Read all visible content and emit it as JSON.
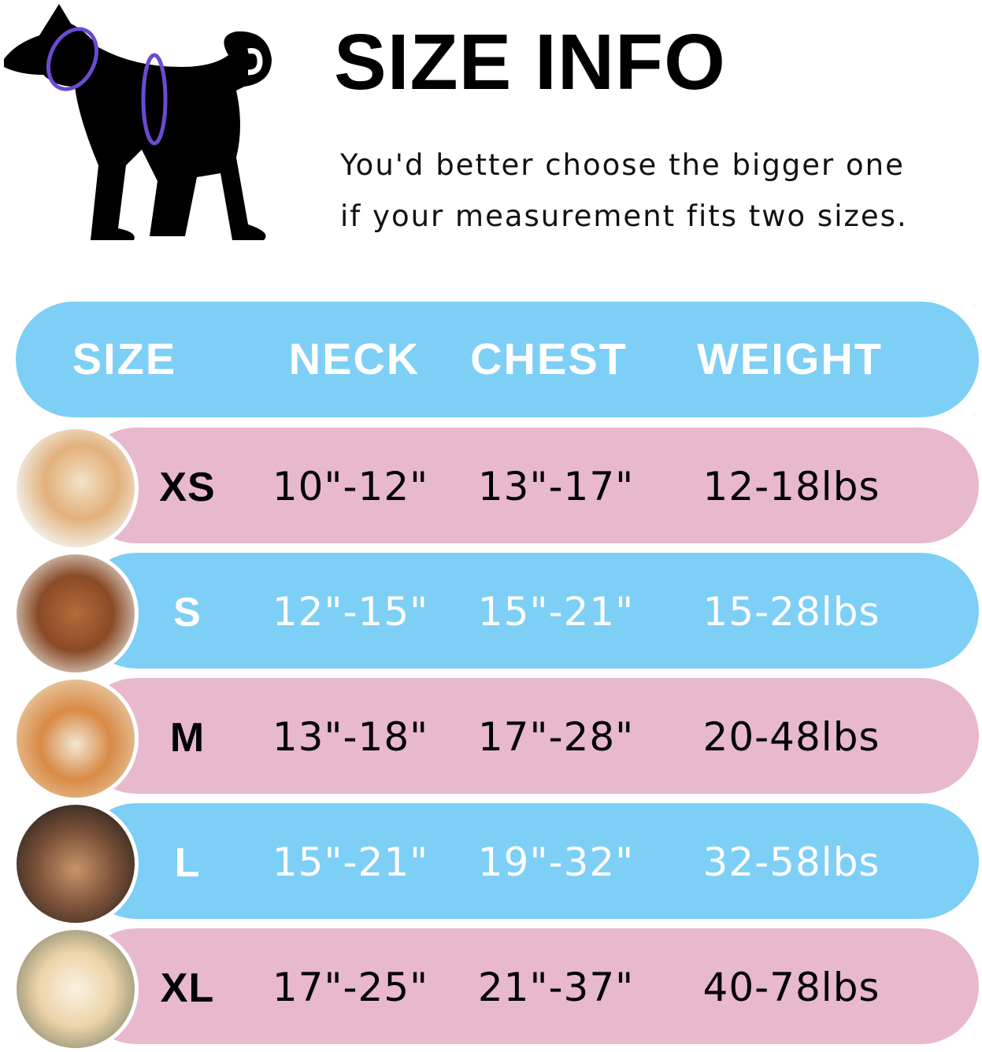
{
  "header": {
    "title": "SIZE INFO",
    "subtitle_line1": "You'd better choose the bigger one",
    "subtitle_line2": "if your measurement fits two sizes.",
    "dog_icon": "dog-silhouette-measurement-icon"
  },
  "table": {
    "columns": [
      "SIZE",
      "NECK",
      "CHEST",
      "WEIGHT"
    ],
    "rows": [
      {
        "size": "XS",
        "neck": "10\"-12\"",
        "chest": "13\"-17\"",
        "weight": "12-18lbs"
      },
      {
        "size": "S",
        "neck": "12\"-15\"",
        "chest": "15\"-21\"",
        "weight": "15-28lbs"
      },
      {
        "size": "M",
        "neck": "13\"-18\"",
        "chest": "17\"-28\"",
        "weight": "20-48lbs"
      },
      {
        "size": "L",
        "neck": "15\"-21\"",
        "chest": "19\"-32\"",
        "weight": "32-58lbs"
      },
      {
        "size": "XL",
        "neck": "17\"-25\"",
        "chest": "21\"-37\"",
        "weight": "40-78lbs"
      }
    ]
  },
  "colors": {
    "blue": "#7dcff6",
    "pink": "#e8b8cd",
    "ring": "#6a4bd0"
  }
}
